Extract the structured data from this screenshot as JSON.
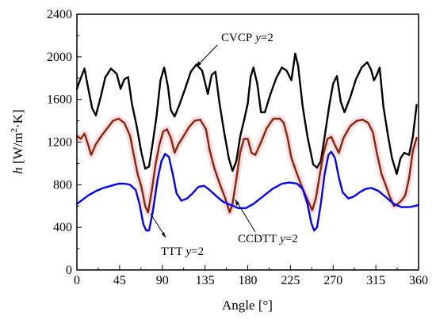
{
  "chart_data": {
    "type": "line",
    "xlabel": "Angle [°]",
    "ylabel": {
      "var": "h",
      "unit_open": " [W/m",
      "unit_sup": "2",
      "unit_close": "·K]"
    },
    "xlim": [
      0,
      360
    ],
    "ylim": [
      0,
      2400
    ],
    "xticks": [
      0,
      45,
      90,
      135,
      180,
      225,
      270,
      315,
      360
    ],
    "yticks": [
      0,
      400,
      800,
      1200,
      1600,
      2000,
      2400
    ],
    "grid": false,
    "series": [
      {
        "name": "CVCP y=2",
        "color": "#000000",
        "points": [
          [
            0,
            1700
          ],
          [
            4,
            1800
          ],
          [
            8,
            1890
          ],
          [
            12,
            1700
          ],
          [
            16,
            1520
          ],
          [
            20,
            1450
          ],
          [
            25,
            1620
          ],
          [
            30,
            1810
          ],
          [
            36,
            1890
          ],
          [
            42,
            1840
          ],
          [
            46,
            1700
          ],
          [
            50,
            1790
          ],
          [
            54,
            1810
          ],
          [
            58,
            1560
          ],
          [
            63,
            1350
          ],
          [
            68,
            1100
          ],
          [
            72,
            950
          ],
          [
            76,
            970
          ],
          [
            80,
            1200
          ],
          [
            84,
            1450
          ],
          [
            88,
            1780
          ],
          [
            92,
            1900
          ],
          [
            96,
            1720
          ],
          [
            99,
            1500
          ],
          [
            103,
            1440
          ],
          [
            108,
            1550
          ],
          [
            114,
            1700
          ],
          [
            120,
            1860
          ],
          [
            126,
            1930
          ],
          [
            132,
            1870
          ],
          [
            138,
            1650
          ],
          [
            142,
            1830
          ],
          [
            146,
            1860
          ],
          [
            150,
            1580
          ],
          [
            155,
            1300
          ],
          [
            160,
            1050
          ],
          [
            164,
            930
          ],
          [
            168,
            1020
          ],
          [
            172,
            1250
          ],
          [
            176,
            1400
          ],
          [
            180,
            1560
          ],
          [
            183,
            1810
          ],
          [
            186,
            1900
          ],
          [
            190,
            1750
          ],
          [
            194,
            1480
          ],
          [
            198,
            1480
          ],
          [
            204,
            1650
          ],
          [
            210,
            1800
          ],
          [
            216,
            1900
          ],
          [
            221,
            1870
          ],
          [
            226,
            1780
          ],
          [
            230,
            2030
          ],
          [
            233,
            1920
          ],
          [
            238,
            1530
          ],
          [
            243,
            1250
          ],
          [
            249,
            990
          ],
          [
            253,
            960
          ],
          [
            257,
            1020
          ],
          [
            261,
            1250
          ],
          [
            266,
            1550
          ],
          [
            270,
            1750
          ],
          [
            274,
            1820
          ],
          [
            278,
            1580
          ],
          [
            282,
            1480
          ],
          [
            288,
            1620
          ],
          [
            294,
            1790
          ],
          [
            300,
            1900
          ],
          [
            306,
            1950
          ],
          [
            310,
            1880
          ],
          [
            313,
            1780
          ],
          [
            316,
            1830
          ],
          [
            319,
            1900
          ],
          [
            323,
            1530
          ],
          [
            328,
            1250
          ],
          [
            332,
            1050
          ],
          [
            337,
            900
          ],
          [
            341,
            1050
          ],
          [
            345,
            1100
          ],
          [
            350,
            1080
          ],
          [
            354,
            1250
          ],
          [
            358,
            1550
          ]
        ]
      },
      {
        "name": "CCDTT y=2",
        "color": "#8b2500",
        "points": [
          [
            0,
            1260
          ],
          [
            4,
            1230
          ],
          [
            8,
            1280
          ],
          [
            12,
            1170
          ],
          [
            15,
            1080
          ],
          [
            20,
            1180
          ],
          [
            26,
            1260
          ],
          [
            32,
            1330
          ],
          [
            38,
            1400
          ],
          [
            44,
            1420
          ],
          [
            50,
            1380
          ],
          [
            56,
            1260
          ],
          [
            60,
            1080
          ],
          [
            64,
            900
          ],
          [
            68,
            780
          ],
          [
            72,
            600
          ],
          [
            75,
            540
          ],
          [
            79,
            750
          ],
          [
            83,
            1000
          ],
          [
            87,
            1180
          ],
          [
            91,
            1300
          ],
          [
            95,
            1320
          ],
          [
            99,
            1240
          ],
          [
            103,
            1100
          ],
          [
            107,
            1180
          ],
          [
            112,
            1250
          ],
          [
            118,
            1340
          ],
          [
            124,
            1400
          ],
          [
            130,
            1410
          ],
          [
            136,
            1320
          ],
          [
            140,
            1120
          ],
          [
            145,
            950
          ],
          [
            150,
            820
          ],
          [
            156,
            680
          ],
          [
            161,
            540
          ],
          [
            164,
            620
          ],
          [
            168,
            850
          ],
          [
            172,
            1100
          ],
          [
            176,
            1230
          ],
          [
            180,
            1230
          ],
          [
            184,
            1100
          ],
          [
            188,
            1080
          ],
          [
            194,
            1200
          ],
          [
            200,
            1330
          ],
          [
            207,
            1420
          ],
          [
            214,
            1420
          ],
          [
            218,
            1380
          ],
          [
            222,
            1240
          ],
          [
            226,
            1050
          ],
          [
            232,
            900
          ],
          [
            238,
            760
          ],
          [
            244,
            640
          ],
          [
            248,
            560
          ],
          [
            252,
            680
          ],
          [
            256,
            900
          ],
          [
            260,
            1100
          ],
          [
            264,
            1230
          ],
          [
            268,
            1250
          ],
          [
            272,
            1170
          ],
          [
            276,
            1100
          ],
          [
            281,
            1240
          ],
          [
            288,
            1350
          ],
          [
            295,
            1400
          ],
          [
            301,
            1410
          ],
          [
            307,
            1380
          ],
          [
            312,
            1290
          ],
          [
            316,
            1100
          ],
          [
            321,
            900
          ],
          [
            326,
            780
          ],
          [
            330,
            680
          ],
          [
            334,
            600
          ],
          [
            338,
            620
          ],
          [
            342,
            650
          ],
          [
            346,
            700
          ],
          [
            350,
            860
          ],
          [
            354,
            1120
          ],
          [
            358,
            1240
          ]
        ]
      },
      {
        "name": "TTT y=2",
        "color": "#0000ff",
        "points": [
          [
            0,
            620
          ],
          [
            6,
            660
          ],
          [
            12,
            700
          ],
          [
            20,
            740
          ],
          [
            28,
            770
          ],
          [
            36,
            790
          ],
          [
            44,
            810
          ],
          [
            50,
            810
          ],
          [
            56,
            800
          ],
          [
            62,
            750
          ],
          [
            66,
            620
          ],
          [
            70,
            430
          ],
          [
            73,
            370
          ],
          [
            76,
            370
          ],
          [
            80,
            550
          ],
          [
            85,
            850
          ],
          [
            89,
            1020
          ],
          [
            93,
            1090
          ],
          [
            97,
            1060
          ],
          [
            101,
            900
          ],
          [
            105,
            720
          ],
          [
            110,
            650
          ],
          [
            116,
            670
          ],
          [
            122,
            720
          ],
          [
            128,
            780
          ],
          [
            134,
            790
          ],
          [
            140,
            750
          ],
          [
            146,
            700
          ],
          [
            154,
            640
          ],
          [
            162,
            610
          ],
          [
            170,
            580
          ],
          [
            178,
            580
          ],
          [
            186,
            620
          ],
          [
            196,
            690
          ],
          [
            206,
            760
          ],
          [
            216,
            810
          ],
          [
            224,
            820
          ],
          [
            232,
            810
          ],
          [
            238,
            760
          ],
          [
            243,
            620
          ],
          [
            247,
            440
          ],
          [
            250,
            370
          ],
          [
            253,
            400
          ],
          [
            257,
            620
          ],
          [
            261,
            900
          ],
          [
            265,
            1080
          ],
          [
            268,
            1110
          ],
          [
            272,
            1050
          ],
          [
            276,
            870
          ],
          [
            280,
            730
          ],
          [
            286,
            670
          ],
          [
            292,
            690
          ],
          [
            298,
            730
          ],
          [
            304,
            760
          ],
          [
            310,
            770
          ],
          [
            318,
            740
          ],
          [
            326,
            680
          ],
          [
            334,
            620
          ],
          [
            342,
            590
          ],
          [
            350,
            590
          ],
          [
            356,
            600
          ],
          [
            360,
            610
          ]
        ]
      }
    ],
    "annotations": [
      {
        "text": "CVCP",
        "var": "y",
        "val": "=2"
      },
      {
        "text": "CCDTT",
        "var": "y",
        "val": "=2"
      },
      {
        "text": "TTT",
        "var": "y",
        "val": "=2"
      }
    ]
  }
}
